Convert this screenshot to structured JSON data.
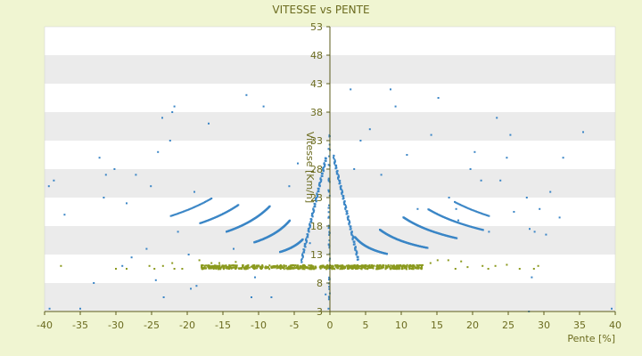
{
  "chart_data": {
    "type": "scatter",
    "title": "VITESSE vs PENTE",
    "xlabel": "Pente [%]",
    "ylabel": "Vitesse [Km/h]",
    "xlim": [
      -40,
      40
    ],
    "ylim": [
      3,
      53
    ],
    "x_ticks": [
      -40,
      -35,
      -30,
      -25,
      -20,
      -15,
      -10,
      -5,
      0,
      5,
      10,
      15,
      20,
      25,
      30,
      35,
      40
    ],
    "y_ticks": [
      3,
      8,
      13,
      18,
      23,
      28,
      33,
      38,
      43,
      48,
      53
    ],
    "grid": "horizontal bands",
    "legend": "none",
    "colors": {
      "primary": "#3b86c6",
      "secondary": "#8b9a1e",
      "band": "#ebebeb",
      "axis": "#5b5b1b"
    },
    "series": [
      {
        "color": "#3b86c6",
        "curves": [
          {
            "a": 0.4,
            "x_from": -0.2,
            "x_to": 0,
            "step": 0.004
          },
          {
            "a": 0.5,
            "x_from": -4,
            "x_to": -0.5,
            "step": 0.03
          },
          {
            "a": -0.5,
            "x_from": 0.5,
            "x_to": 4,
            "step": 0.03
          },
          {
            "a": 18.5,
            "x_from": -7,
            "x_to": -3.8,
            "step": 0.025
          },
          {
            "a": 18.5,
            "x_from": 3.5,
            "x_to": 8,
            "step": 0.025
          },
          {
            "a": 46,
            "x_from": -10.6,
            "x_to": -5.6,
            "step": 0.03
          },
          {
            "a": 46,
            "x_from": 7,
            "x_to": 13.7,
            "step": 0.03
          },
          {
            "a": 90,
            "x_from": -14.5,
            "x_to": -8.4,
            "step": 0.04
          },
          {
            "a": 90,
            "x_from": 10.3,
            "x_to": 17.8,
            "step": 0.04
          },
          {
            "a": 140,
            "x_from": -18.2,
            "x_to": -12.8,
            "step": 0.08
          },
          {
            "a": 140,
            "x_from": 13.8,
            "x_to": 21.5,
            "step": 0.08
          },
          {
            "a": 200,
            "x_from": -22.3,
            "x_to": -16.5,
            "step": 0.15
          },
          {
            "a": 200,
            "x_from": 17.5,
            "x_to": 22.3,
            "step": 0.15
          }
        ],
        "points": [
          [
            -39.4,
            25
          ],
          [
            -38.7,
            26
          ],
          [
            -37.2,
            20
          ],
          [
            -33.1,
            8
          ],
          [
            -32.3,
            30
          ],
          [
            -31.7,
            23
          ],
          [
            -31.4,
            27
          ],
          [
            -30.2,
            28
          ],
          [
            -29.1,
            11
          ],
          [
            -28.5,
            22
          ],
          [
            -27.8,
            12.5
          ],
          [
            -27.2,
            27
          ],
          [
            -25.7,
            14
          ],
          [
            -25.1,
            25
          ],
          [
            -24.4,
            8.5
          ],
          [
            -24.1,
            31
          ],
          [
            -23.5,
            37
          ],
          [
            -23.3,
            5.5
          ],
          [
            -22.4,
            33
          ],
          [
            -22.1,
            38
          ],
          [
            -21.8,
            39
          ],
          [
            -21.3,
            17
          ],
          [
            -19.8,
            13
          ],
          [
            -19.5,
            7
          ],
          [
            -19,
            24
          ],
          [
            -18.7,
            7.5
          ],
          [
            -17,
            36
          ],
          [
            -13.5,
            14
          ],
          [
            -11.7,
            41
          ],
          [
            -11,
            5.5
          ],
          [
            -10.5,
            9
          ],
          [
            -9.3,
            39
          ],
          [
            -8.2,
            5.5
          ],
          [
            -5.7,
            25
          ],
          [
            -4.5,
            29
          ],
          [
            -2.8,
            15
          ],
          [
            -0.6,
            6
          ],
          [
            -0.2,
            3.5
          ],
          [
            2.9,
            42
          ],
          [
            3.4,
            28
          ],
          [
            4.3,
            33
          ],
          [
            5.6,
            35
          ],
          [
            7.2,
            27
          ],
          [
            8.5,
            42
          ],
          [
            9.2,
            39
          ],
          [
            10.8,
            30.5
          ],
          [
            12.3,
            21
          ],
          [
            14.2,
            34
          ],
          [
            15.2,
            40.5
          ],
          [
            16.7,
            23
          ],
          [
            17.7,
            21
          ],
          [
            18,
            19
          ],
          [
            19.7,
            28
          ],
          [
            20.3,
            31
          ],
          [
            21.2,
            26
          ],
          [
            22.3,
            17
          ],
          [
            23.4,
            37
          ],
          [
            23.9,
            26
          ],
          [
            24.8,
            30
          ],
          [
            25.3,
            34
          ],
          [
            25.8,
            20.5
          ],
          [
            27.6,
            23
          ],
          [
            28,
            17.5
          ],
          [
            28.3,
            9
          ],
          [
            28.7,
            17
          ],
          [
            29.4,
            21
          ],
          [
            30.3,
            16.5
          ],
          [
            30.9,
            24
          ],
          [
            32.2,
            19.5
          ],
          [
            32.7,
            30
          ],
          [
            35.5,
            34.5
          ],
          [
            27.9,
            3
          ],
          [
            -39.3,
            3.5
          ],
          [
            39.5,
            3.5
          ],
          [
            -35,
            3.5
          ]
        ]
      },
      {
        "color": "#8b9a1e",
        "band": {
          "x_from": -18,
          "x_to": 13,
          "y_center": 10.8,
          "y_spread": 0.35,
          "count": 700
        },
        "points": [
          [
            -37.7,
            11
          ],
          [
            -30,
            10.5
          ],
          [
            -28.5,
            10.5
          ],
          [
            -25.3,
            11
          ],
          [
            -24.6,
            10.5
          ],
          [
            -23.4,
            11
          ],
          [
            -22.1,
            11.5
          ],
          [
            -21.8,
            10.5
          ],
          [
            -20.7,
            10.5
          ],
          [
            -18.3,
            12
          ],
          [
            -16.6,
            11.5
          ],
          [
            -15.5,
            11.5
          ],
          [
            -13.2,
            11.7
          ],
          [
            14.1,
            11.5
          ],
          [
            15.1,
            12
          ],
          [
            16.6,
            12
          ],
          [
            17.6,
            10.5
          ],
          [
            18.4,
            11.8
          ],
          [
            19.3,
            10.8
          ],
          [
            21.4,
            11
          ],
          [
            22.2,
            10.5
          ],
          [
            23.2,
            11
          ],
          [
            24.8,
            11.2
          ],
          [
            26.6,
            10.5
          ],
          [
            28.6,
            10.5
          ],
          [
            29.2,
            11
          ]
        ]
      }
    ]
  }
}
